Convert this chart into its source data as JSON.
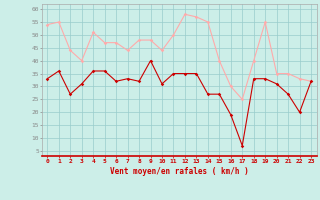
{
  "x": [
    0,
    1,
    2,
    3,
    4,
    5,
    6,
    7,
    8,
    9,
    10,
    11,
    12,
    13,
    14,
    15,
    16,
    17,
    18,
    19,
    20,
    21,
    22,
    23
  ],
  "mean_wind": [
    33,
    36,
    27,
    31,
    36,
    36,
    32,
    33,
    32,
    40,
    31,
    35,
    35,
    35,
    27,
    27,
    19,
    7,
    33,
    33,
    31,
    27,
    20,
    32
  ],
  "gust_wind": [
    54,
    55,
    44,
    40,
    51,
    47,
    47,
    44,
    48,
    48,
    44,
    50,
    58,
    57,
    55,
    40,
    30,
    25,
    40,
    55,
    35,
    35,
    33,
    32
  ],
  "mean_color": "#cc0000",
  "gust_color": "#ffaaaa",
  "bg_color": "#cceee8",
  "grid_color": "#99cccc",
  "xlabel": "Vent moyen/en rafales ( km/h )",
  "xlabel_color": "#cc0000",
  "ylabel_ticks": [
    5,
    10,
    15,
    20,
    25,
    30,
    35,
    40,
    45,
    50,
    55,
    60
  ],
  "ylim": [
    3,
    62
  ],
  "xlim": [
    -0.5,
    23.5
  ]
}
